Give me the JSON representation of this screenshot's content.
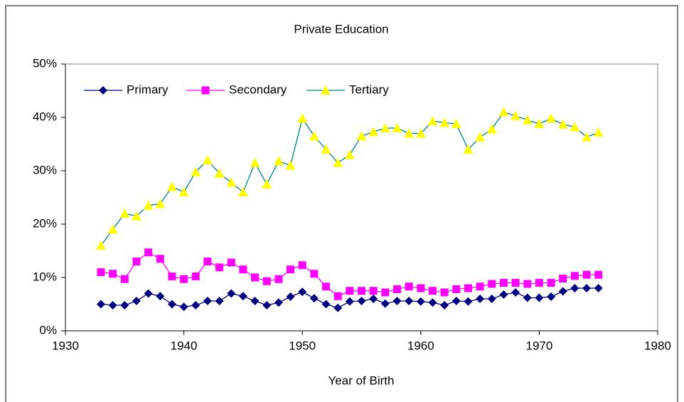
{
  "chart_data": {
    "type": "line",
    "title": "Private Education",
    "x_label": "Year of Birth",
    "x": [
      1933,
      1934,
      1935,
      1936,
      1937,
      1938,
      1939,
      1940,
      1941,
      1942,
      1943,
      1944,
      1945,
      1946,
      1947,
      1948,
      1949,
      1950,
      1951,
      1952,
      1953,
      1954,
      1955,
      1956,
      1957,
      1958,
      1959,
      1960,
      1961,
      1962,
      1963,
      1964,
      1965,
      1966,
      1967,
      1968,
      1969,
      1970,
      1971,
      1972,
      1973,
      1974,
      1975
    ],
    "series": [
      {
        "name": "Primary",
        "color": "#000080",
        "marker": "diamond",
        "values": [
          5,
          4.8,
          4.8,
          5.6,
          7,
          6.5,
          5,
          4.5,
          4.8,
          5.6,
          5.6,
          7,
          6.5,
          5.6,
          4.8,
          5.3,
          6.4,
          7.3,
          6.1,
          5,
          4.3,
          5.5,
          5.6,
          6,
          5.1,
          5.6,
          5.6,
          5.5,
          5.3,
          4.8,
          5.6,
          5.5,
          6,
          6,
          6.8,
          7.2,
          6.2,
          6.2,
          6.4,
          7.4,
          8,
          8,
          8
        ]
      },
      {
        "name": "Secondary",
        "color": "#ff00ff",
        "marker": "square",
        "values": [
          11,
          10.7,
          9.7,
          13,
          14.7,
          13.5,
          10.2,
          9.7,
          10.2,
          13,
          11.9,
          12.8,
          11.5,
          10,
          9.3,
          9.7,
          11.5,
          12.3,
          10.7,
          8.3,
          6.5,
          7.5,
          7.5,
          7.5,
          7.2,
          7.8,
          8.3,
          8,
          7.5,
          7.2,
          7.8,
          8,
          8.3,
          8.8,
          9,
          9,
          8.8,
          9,
          9,
          9.8,
          10.3,
          10.5,
          10.5
        ]
      },
      {
        "name": "Tertiary",
        "color": "#008080",
        "marker_color": "#ffff00",
        "marker": "triangle",
        "values": [
          16,
          19,
          22,
          21.5,
          23.5,
          23.8,
          27,
          26,
          29.8,
          32,
          29.5,
          27.8,
          26,
          31.5,
          27.5,
          31.8,
          31,
          39.8,
          36.5,
          34,
          31.5,
          33,
          36.5,
          37.3,
          38,
          38,
          37,
          37,
          39.3,
          39,
          38.8,
          34,
          36.3,
          37.8,
          41,
          40.3,
          39.5,
          38.8,
          39.8,
          38.7,
          38.2,
          36.3,
          37.2
        ]
      }
    ],
    "xlim": [
      1930,
      1980
    ],
    "xticks": [
      1930,
      1940,
      1950,
      1960,
      1970,
      1980
    ],
    "ylim": [
      0,
      50
    ],
    "yticks": [
      {
        "value": 0,
        "label": "0%"
      },
      {
        "value": 10,
        "label": "10%"
      },
      {
        "value": 20,
        "label": "20%"
      },
      {
        "value": 30,
        "label": "30%"
      },
      {
        "value": 40,
        "label": "40%"
      },
      {
        "value": 50,
        "label": "50%"
      }
    ],
    "legend": "upper-left",
    "grid": false
  }
}
